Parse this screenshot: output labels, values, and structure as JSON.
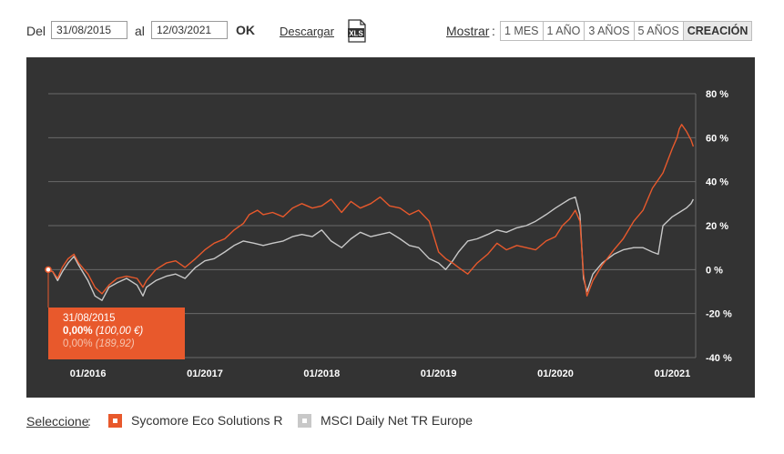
{
  "toolbar": {
    "from_label": "Del",
    "from_value": "31/08/2015",
    "to_label": "al",
    "to_value": "12/03/2021",
    "ok_label": "OK",
    "download_label": "Descargar",
    "xls_icon_label": "XLS",
    "show_label": "Mostrar",
    "show_colon": ":",
    "ranges": [
      "1 MES",
      "1 AÑO",
      "3 AÑOS",
      "5 AÑOS",
      "CREACIÓN"
    ],
    "active_range": "CREACIÓN"
  },
  "tooltip": {
    "date": "31/08/2015",
    "fund_pct": "0,00%",
    "fund_value": "(100,00 €)",
    "index_pct": "0,00%",
    "index_value": "(189,92)"
  },
  "legend": {
    "select_label": "Seleccione",
    "select_colon": ":",
    "items": [
      {
        "label": "Sycomore Eco Solutions R",
        "color": "#e8592c"
      },
      {
        "label": "MSCI Daily Net TR Europe",
        "color": "#c8c8c8"
      }
    ]
  },
  "chart_data": {
    "type": "line",
    "x_tick_labels": [
      "01/2016",
      "01/2017",
      "01/2018",
      "01/2019",
      "01/2020",
      "01/2021"
    ],
    "x_ticks": [
      2016.0,
      2017.0,
      2018.0,
      2019.0,
      2020.0,
      2021.0
    ],
    "xlim": [
      2015.66,
      2021.2
    ],
    "y_tick_labels": [
      "80 %",
      "60 %",
      "40 %",
      "20 %",
      "0 %",
      "-20 %",
      "-40 %"
    ],
    "y_ticks": [
      80,
      60,
      40,
      20,
      0,
      -20,
      -40
    ],
    "ylim": [
      -40,
      80
    ],
    "grid": true,
    "series": [
      {
        "name": "Sycomore Eco Solutions R",
        "color": "#e8592c",
        "points": [
          [
            2015.66,
            0
          ],
          [
            2015.7,
            -1
          ],
          [
            2015.74,
            -4
          ],
          [
            2015.78,
            1
          ],
          [
            2015.83,
            5
          ],
          [
            2015.88,
            7
          ],
          [
            2015.92,
            3
          ],
          [
            2016.0,
            -2
          ],
          [
            2016.06,
            -8
          ],
          [
            2016.12,
            -11
          ],
          [
            2016.18,
            -7
          ],
          [
            2016.25,
            -4
          ],
          [
            2016.33,
            -3
          ],
          [
            2016.42,
            -4
          ],
          [
            2016.47,
            -8
          ],
          [
            2016.5,
            -5
          ],
          [
            2016.58,
            0
          ],
          [
            2016.67,
            3
          ],
          [
            2016.75,
            4
          ],
          [
            2016.83,
            1
          ],
          [
            2016.92,
            5
          ],
          [
            2017.0,
            9
          ],
          [
            2017.08,
            12
          ],
          [
            2017.17,
            14
          ],
          [
            2017.25,
            18
          ],
          [
            2017.33,
            21
          ],
          [
            2017.38,
            25
          ],
          [
            2017.45,
            27
          ],
          [
            2017.5,
            25
          ],
          [
            2017.58,
            26
          ],
          [
            2017.67,
            24
          ],
          [
            2017.75,
            28
          ],
          [
            2017.83,
            30
          ],
          [
            2017.92,
            28
          ],
          [
            2018.0,
            29
          ],
          [
            2018.08,
            32
          ],
          [
            2018.17,
            26
          ],
          [
            2018.25,
            31
          ],
          [
            2018.33,
            28
          ],
          [
            2018.42,
            30
          ],
          [
            2018.5,
            33
          ],
          [
            2018.58,
            29
          ],
          [
            2018.67,
            28
          ],
          [
            2018.75,
            25
          ],
          [
            2018.83,
            27
          ],
          [
            2018.92,
            22
          ],
          [
            2019.0,
            8
          ],
          [
            2019.06,
            5
          ],
          [
            2019.12,
            3
          ],
          [
            2019.17,
            1
          ],
          [
            2019.25,
            -2
          ],
          [
            2019.33,
            3
          ],
          [
            2019.42,
            7
          ],
          [
            2019.5,
            12
          ],
          [
            2019.58,
            9
          ],
          [
            2019.67,
            11
          ],
          [
            2019.75,
            10
          ],
          [
            2019.83,
            9
          ],
          [
            2019.92,
            13
          ],
          [
            2020.0,
            15
          ],
          [
            2020.06,
            20
          ],
          [
            2020.12,
            23
          ],
          [
            2020.17,
            27
          ],
          [
            2020.21,
            22
          ],
          [
            2020.24,
            -2
          ],
          [
            2020.27,
            -12
          ],
          [
            2020.32,
            -5
          ],
          [
            2020.4,
            2
          ],
          [
            2020.5,
            9
          ],
          [
            2020.58,
            14
          ],
          [
            2020.67,
            22
          ],
          [
            2020.75,
            27
          ],
          [
            2020.83,
            37
          ],
          [
            2020.92,
            44
          ],
          [
            2021.0,
            55
          ],
          [
            2021.04,
            60
          ],
          [
            2021.06,
            64
          ],
          [
            2021.08,
            66
          ],
          [
            2021.12,
            63
          ],
          [
            2021.16,
            59
          ],
          [
            2021.18,
            56
          ]
        ]
      },
      {
        "name": "MSCI Daily Net TR Europe",
        "color": "#c8c8c8",
        "points": [
          [
            2015.66,
            0
          ],
          [
            2015.7,
            -1
          ],
          [
            2015.74,
            -5
          ],
          [
            2015.78,
            -1
          ],
          [
            2015.83,
            3
          ],
          [
            2015.88,
            6
          ],
          [
            2015.92,
            2
          ],
          [
            2016.0,
            -5
          ],
          [
            2016.06,
            -12
          ],
          [
            2016.12,
            -14
          ],
          [
            2016.18,
            -8
          ],
          [
            2016.25,
            -6
          ],
          [
            2016.33,
            -4
          ],
          [
            2016.42,
            -7
          ],
          [
            2016.47,
            -12
          ],
          [
            2016.5,
            -8
          ],
          [
            2016.58,
            -5
          ],
          [
            2016.67,
            -3
          ],
          [
            2016.75,
            -2
          ],
          [
            2016.83,
            -4
          ],
          [
            2016.92,
            1
          ],
          [
            2017.0,
            4
          ],
          [
            2017.08,
            5
          ],
          [
            2017.17,
            8
          ],
          [
            2017.25,
            11
          ],
          [
            2017.33,
            13
          ],
          [
            2017.42,
            12
          ],
          [
            2017.5,
            11
          ],
          [
            2017.58,
            12
          ],
          [
            2017.67,
            13
          ],
          [
            2017.75,
            15
          ],
          [
            2017.83,
            16
          ],
          [
            2017.92,
            15
          ],
          [
            2018.0,
            18
          ],
          [
            2018.08,
            13
          ],
          [
            2018.17,
            10
          ],
          [
            2018.25,
            14
          ],
          [
            2018.33,
            17
          ],
          [
            2018.42,
            15
          ],
          [
            2018.5,
            16
          ],
          [
            2018.58,
            17
          ],
          [
            2018.67,
            14
          ],
          [
            2018.75,
            11
          ],
          [
            2018.83,
            10
          ],
          [
            2018.92,
            5
          ],
          [
            2019.0,
            3
          ],
          [
            2019.06,
            0
          ],
          [
            2019.12,
            4
          ],
          [
            2019.17,
            8
          ],
          [
            2019.25,
            13
          ],
          [
            2019.33,
            14
          ],
          [
            2019.42,
            16
          ],
          [
            2019.5,
            18
          ],
          [
            2019.58,
            17
          ],
          [
            2019.67,
            19
          ],
          [
            2019.75,
            20
          ],
          [
            2019.83,
            22
          ],
          [
            2019.92,
            25
          ],
          [
            2020.0,
            28
          ],
          [
            2020.06,
            30
          ],
          [
            2020.12,
            32
          ],
          [
            2020.17,
            33
          ],
          [
            2020.21,
            25
          ],
          [
            2020.24,
            -4
          ],
          [
            2020.27,
            -10
          ],
          [
            2020.32,
            -2
          ],
          [
            2020.4,
            3
          ],
          [
            2020.5,
            7
          ],
          [
            2020.58,
            9
          ],
          [
            2020.67,
            10
          ],
          [
            2020.75,
            10
          ],
          [
            2020.83,
            8
          ],
          [
            2020.88,
            7
          ],
          [
            2020.92,
            20
          ],
          [
            2021.0,
            24
          ],
          [
            2021.06,
            26
          ],
          [
            2021.12,
            28
          ],
          [
            2021.16,
            30
          ],
          [
            2021.18,
            32
          ]
        ]
      }
    ]
  }
}
